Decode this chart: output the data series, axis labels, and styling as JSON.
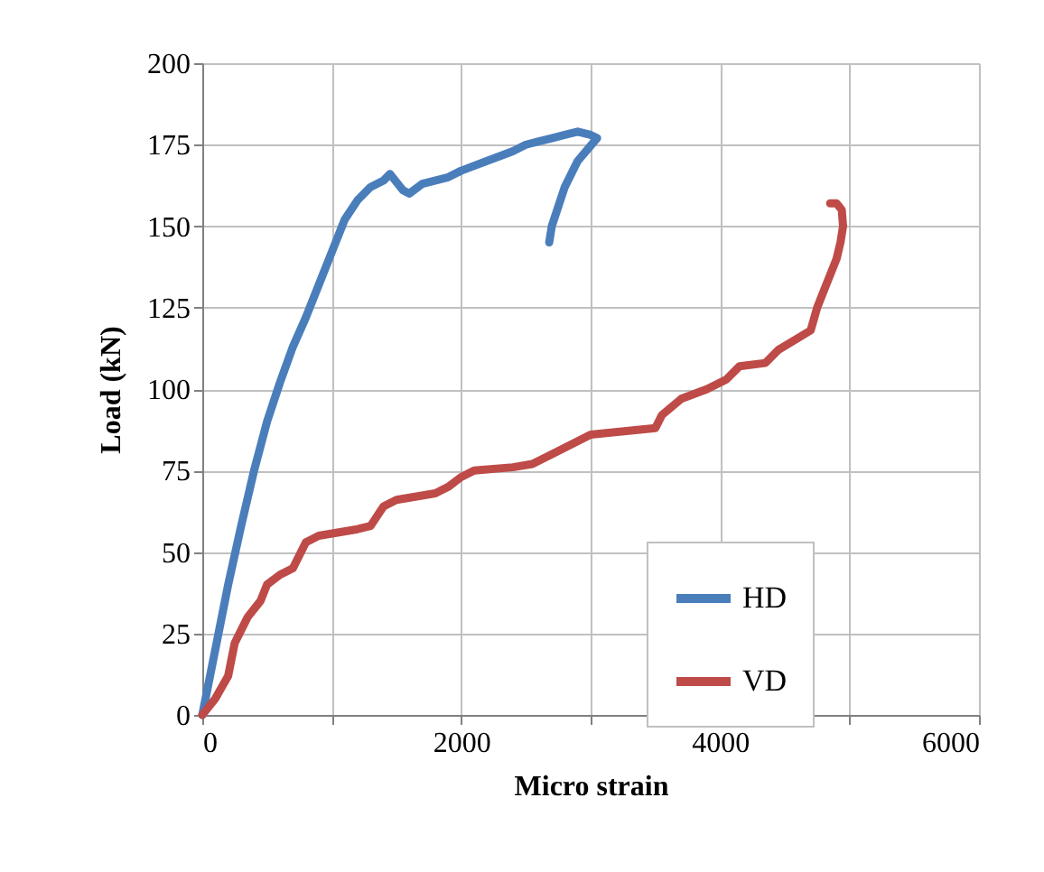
{
  "chart_data": {
    "type": "line",
    "xlabel": "Micro strain",
    "ylabel": "Load (kN)",
    "xlim": [
      0,
      6000
    ],
    "xticks": [
      0,
      {
        "value": 1000,
        "label": null
      },
      2000,
      {
        "value": 3000,
        "label": null
      },
      4000,
      {
        "value": 5000,
        "label": null
      },
      6000
    ],
    "ylim": [
      0,
      200
    ],
    "yticks": [
      0,
      25,
      50,
      75,
      100,
      125,
      150,
      175,
      200
    ],
    "grid": true,
    "legend": "bottom right",
    "marker": "none",
    "line_style": "solid",
    "series": [
      {
        "name": "HD",
        "color": "#4a7ebb",
        "x": [
          0,
          100,
          200,
          300,
          400,
          500,
          600,
          700,
          800,
          900,
          1000,
          1100,
          1200,
          1300,
          1400,
          1450,
          1550,
          1600,
          1700,
          1900,
          2000,
          2200,
          2400,
          2500,
          2600,
          2700,
          2800,
          2900,
          3000,
          3050,
          2900,
          2800,
          2700,
          2680
        ],
        "values": [
          0,
          20,
          40,
          58,
          75,
          90,
          102,
          113,
          122,
          132,
          142,
          152,
          158,
          162,
          164,
          166,
          161,
          160,
          163,
          165,
          167,
          170,
          173,
          175,
          176,
          177,
          178,
          179,
          178,
          177,
          170,
          162,
          150,
          145
        ]
      },
      {
        "name": "VD",
        "color": "#be4b48",
        "x": [
          0,
          100,
          200,
          250,
          350,
          450,
          500,
          600,
          700,
          800,
          900,
          1200,
          1300,
          1400,
          1500,
          1800,
          1900,
          2000,
          2100,
          2400,
          2550,
          2700,
          2800,
          2900,
          3000,
          3500,
          3550,
          3700,
          3900,
          4050,
          4150,
          4350,
          4450,
          4700,
          4750,
          4800,
          4900,
          4930,
          4950,
          4940,
          4900,
          4850
        ],
        "values": [
          0,
          5,
          12,
          22,
          30,
          35,
          40,
          43,
          45,
          53,
          55,
          57,
          58,
          64,
          66,
          68,
          70,
          73,
          75,
          76,
          77,
          80,
          82,
          84,
          86,
          88,
          92,
          97,
          100,
          103,
          107,
          108,
          112,
          118,
          125,
          130,
          140,
          145,
          150,
          155,
          157,
          157
        ]
      }
    ]
  }
}
